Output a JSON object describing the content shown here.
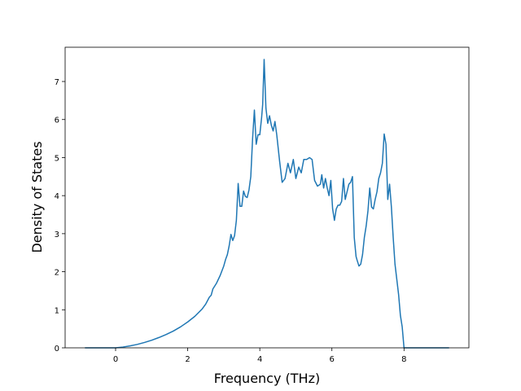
{
  "chart_data": {
    "type": "line",
    "title": "",
    "xlabel": "Frequency (THz)",
    "ylabel": "Density of States",
    "xlim": [
      -1.4,
      9.8
    ],
    "ylim": [
      0,
      7.9
    ],
    "xticks": [
      0,
      2,
      4,
      6,
      8
    ],
    "yticks": [
      0,
      1,
      2,
      3,
      4,
      5,
      6,
      7
    ],
    "grid": false,
    "legend": "none",
    "series": [
      {
        "color": "#1f77b4",
        "x": [
          -0.85,
          -0.5,
          0,
          0.2,
          0.4,
          0.6,
          0.8,
          1.0,
          1.2,
          1.4,
          1.6,
          1.8,
          2.0,
          2.2,
          2.4,
          2.5,
          2.6,
          2.65,
          2.7,
          2.8,
          2.9,
          3.0,
          3.05,
          3.1,
          3.15,
          3.2,
          3.25,
          3.3,
          3.35,
          3.4,
          3.45,
          3.5,
          3.55,
          3.6,
          3.65,
          3.7,
          3.75,
          3.8,
          3.85,
          3.9,
          3.95,
          4.0,
          4.05,
          4.08,
          4.12,
          4.17,
          4.22,
          4.27,
          4.32,
          4.37,
          4.42,
          4.47,
          4.55,
          4.62,
          4.7,
          4.78,
          4.85,
          4.93,
          5.0,
          5.08,
          5.15,
          5.22,
          5.3,
          5.38,
          5.45,
          5.52,
          5.6,
          5.68,
          5.72,
          5.77,
          5.82,
          5.87,
          5.92,
          5.97,
          6.02,
          6.07,
          6.12,
          6.17,
          6.22,
          6.27,
          6.32,
          6.37,
          6.42,
          6.47,
          6.52,
          6.57,
          6.62,
          6.67,
          6.7,
          6.75,
          6.8,
          6.85,
          6.9,
          6.95,
          7.0,
          7.05,
          7.1,
          7.15,
          7.2,
          7.25,
          7.3,
          7.35,
          7.4,
          7.45,
          7.5,
          7.55,
          7.6,
          7.65,
          7.7,
          7.75,
          7.8,
          7.85,
          7.9,
          7.95,
          8.0,
          8.1,
          8.2,
          8.3,
          8.4,
          8.5,
          9.25
        ],
        "values": [
          0,
          0,
          0,
          0.02,
          0.05,
          0.09,
          0.14,
          0.2,
          0.27,
          0.35,
          0.44,
          0.55,
          0.68,
          0.83,
          1.02,
          1.15,
          1.33,
          1.38,
          1.55,
          1.7,
          1.9,
          2.15,
          2.32,
          2.45,
          2.68,
          2.98,
          2.82,
          2.95,
          3.35,
          4.32,
          3.72,
          3.72,
          4.12,
          3.98,
          3.95,
          4.15,
          4.5,
          5.5,
          6.25,
          5.35,
          5.6,
          5.6,
          6.05,
          6.4,
          7.58,
          6.3,
          5.9,
          6.1,
          5.85,
          5.7,
          5.95,
          5.6,
          4.9,
          4.35,
          4.45,
          4.85,
          4.6,
          4.95,
          4.45,
          4.75,
          4.6,
          4.95,
          4.95,
          5.0,
          4.95,
          4.4,
          4.25,
          4.3,
          4.55,
          4.2,
          4.45,
          4.2,
          4.0,
          4.4,
          3.65,
          3.35,
          3.65,
          3.75,
          3.75,
          3.85,
          4.45,
          3.9,
          4.1,
          4.3,
          4.35,
          4.5,
          2.9,
          2.4,
          2.3,
          2.15,
          2.2,
          2.45,
          2.9,
          3.2,
          3.6,
          4.2,
          3.7,
          3.65,
          3.9,
          4.1,
          4.45,
          4.6,
          4.85,
          5.62,
          5.35,
          3.9,
          4.3,
          3.7,
          2.9,
          2.2,
          1.8,
          1.4,
          0.85,
          0.55,
          0,
          0,
          0,
          0,
          0,
          0,
          0
        ]
      }
    ]
  }
}
